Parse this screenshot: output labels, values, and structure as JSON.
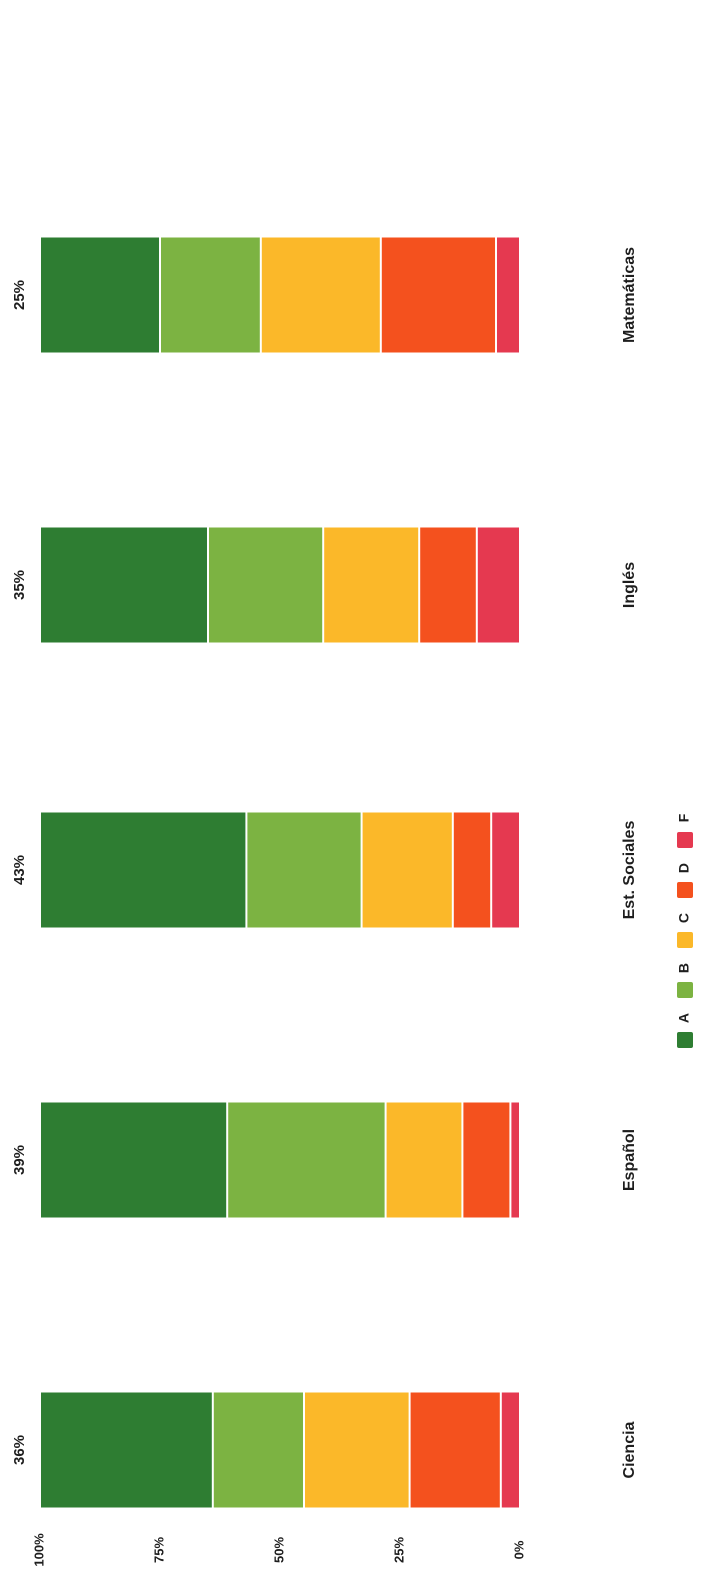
{
  "chart_data": {
    "type": "bar",
    "orientation": "stacked-horizontal (image rotated)",
    "categories": [
      "Ciencia",
      "Español",
      "Est. Sociales",
      "Inglés",
      "Matemáticas"
    ],
    "top_labels": [
      "36%",
      "39%",
      "43%",
      "35%",
      "25%"
    ],
    "series": [
      {
        "name": "A",
        "color": "#2e7d32",
        "values": [
          36,
          39,
          43,
          35,
          25
        ]
      },
      {
        "name": "B",
        "color": "#7cb342",
        "values": [
          19,
          33,
          24,
          24,
          21
        ]
      },
      {
        "name": "C",
        "color": "#fbb829",
        "values": [
          22,
          16,
          19,
          20,
          25
        ]
      },
      {
        "name": "D",
        "color": "#f4511e",
        "values": [
          19,
          10,
          8,
          12,
          24
        ]
      },
      {
        "name": "F",
        "color": "#e53950",
        "values": [
          4,
          2,
          6,
          9,
          5
        ]
      }
    ],
    "tick_labels": [
      "100%",
      "75%",
      "50%",
      "25%",
      "0%"
    ],
    "ticks": [
      100,
      75,
      50,
      25,
      0
    ],
    "ylim": [
      0,
      100
    ],
    "legend": "bottom",
    "grid": false
  }
}
